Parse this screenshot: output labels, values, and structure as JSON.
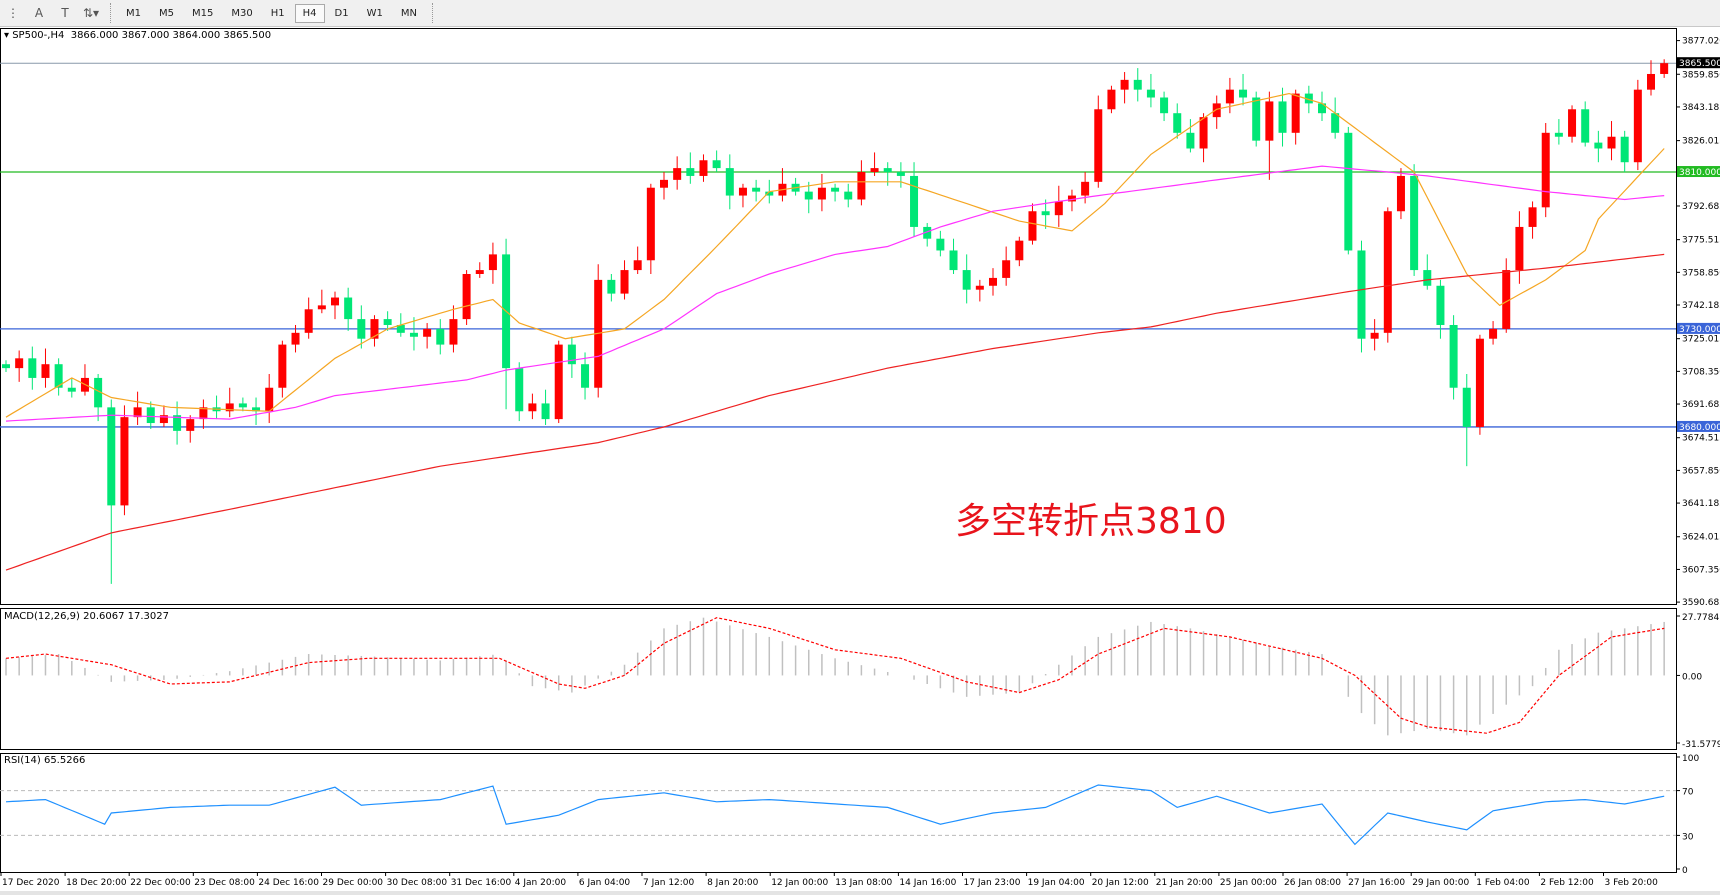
{
  "toolbar": {
    "tools": [
      {
        "icon": "line-studies-icon"
      },
      {
        "icon": "text-A-icon",
        "label": "A"
      },
      {
        "icon": "text-label-icon",
        "label": "T"
      },
      {
        "icon": "arrows-icon"
      }
    ],
    "timeframes": [
      "M1",
      "M5",
      "M15",
      "M30",
      "H1",
      "H4",
      "D1",
      "W1",
      "MN"
    ],
    "active_timeframe": "H4"
  },
  "header": {
    "symbol": "SP500-,H4",
    "ohlc": "3866.000 3867.000 3864.000 3865.500"
  },
  "annotation": "多空转折点3810",
  "levels": [
    {
      "price": 3810,
      "label": "3810.000",
      "color": "#22bb22"
    },
    {
      "price": 3730,
      "label": "3730.000",
      "color": "#3a64d8"
    },
    {
      "price": 3680,
      "label": "3680.000",
      "color": "#3a64d8"
    }
  ],
  "current_price": {
    "label": "3865.500",
    "price": 3865.5
  },
  "colors": {
    "up": "#ff0000",
    "down": "#00e676",
    "ma_fast": "#f5a623",
    "ma_mid": "#ff33ff",
    "ma_slow": "#ee2222",
    "macd_hist": "#c0c0c0",
    "macd_signal": "#ff0000",
    "rsi": "#1e90ff"
  },
  "chart_data": [
    {
      "type": "candlestick",
      "title": "SP500-,H4",
      "ylim": [
        3590.685,
        3877.02
      ],
      "price_ticks": [
        "3877.020",
        "3859.850",
        "3843.185",
        "3826.015",
        "3792.685",
        "3775.515",
        "3758.850",
        "3742.185",
        "3725.015",
        "3708.350",
        "3691.685",
        "3674.515",
        "3657.850",
        "3641.185",
        "3624.015",
        "3607.350",
        "3590.685"
      ],
      "time_labels": [
        "17 Dec 2020",
        "18 Dec 20:00",
        "22 Dec 00:00",
        "23 Dec 08:00",
        "24 Dec 16:00",
        "29 Dec 00:00",
        "30 Dec 08:00",
        "31 Dec 16:00",
        "4 Jan 20:00",
        "6 Jan 04:00",
        "7 Jan 12:00",
        "8 Jan 20:00",
        "12 Jan 00:00",
        "13 Jan 08:00",
        "14 Jan 16:00",
        "17 Jan 23:00",
        "19 Jan 04:00",
        "20 Jan 12:00",
        "21 Jan 20:00",
        "25 Jan 00:00",
        "26 Jan 08:00",
        "27 Jan 16:00",
        "29 Jan 00:00",
        "1 Feb 04:00",
        "2 Feb 12:00",
        "3 Feb 20:00"
      ],
      "close": [
        3710,
        3715,
        3705,
        3712,
        3700,
        3698,
        3705,
        3690,
        3640,
        3685,
        3690,
        3682,
        3686,
        3678,
        3684,
        3690,
        3688,
        3692,
        3690,
        3688,
        3700,
        3722,
        3728,
        3740,
        3742,
        3746,
        3735,
        3725,
        3735,
        3732,
        3728,
        3726,
        3730,
        3722,
        3735,
        3758,
        3760,
        3768,
        3710,
        3688,
        3692,
        3684,
        3722,
        3712,
        3700,
        3755,
        3748,
        3760,
        3765,
        3802,
        3806,
        3812,
        3808,
        3816,
        3812,
        3798,
        3802,
        3800,
        3798,
        3804,
        3800,
        3796,
        3802,
        3800,
        3796,
        3810,
        3812,
        3810,
        3808,
        3782,
        3776,
        3770,
        3760,
        3750,
        3752,
        3756,
        3765,
        3775,
        3790,
        3788,
        3795,
        3798,
        3805,
        3842,
        3852,
        3857,
        3852,
        3848,
        3840,
        3830,
        3822,
        3838,
        3845,
        3852,
        3848,
        3826,
        3846,
        3830,
        3850,
        3845,
        3840,
        3830,
        3770,
        3725,
        3728,
        3790,
        3808,
        3760,
        3752,
        3732,
        3700,
        3680,
        3725,
        3730,
        3760,
        3782,
        3792,
        3830,
        3828,
        3842,
        3825,
        3822,
        3828,
        3815,
        3852,
        3860,
        3865.5
      ],
      "ma_fast": [
        [
          0,
          3685
        ],
        [
          5,
          3705
        ],
        [
          8,
          3695
        ],
        [
          12.5,
          3690
        ],
        [
          20,
          3688
        ],
        [
          25,
          3715
        ],
        [
          29,
          3730
        ],
        [
          34,
          3740
        ],
        [
          37,
          3745
        ],
        [
          39,
          3733
        ],
        [
          42.5,
          3725
        ],
        [
          47,
          3730
        ],
        [
          50,
          3745
        ],
        [
          54,
          3772
        ],
        [
          58,
          3800
        ],
        [
          63,
          3805
        ],
        [
          68,
          3805
        ],
        [
          72.5,
          3795
        ],
        [
          77,
          3785
        ],
        [
          81,
          3780
        ],
        [
          83.5,
          3794
        ],
        [
          87,
          3819
        ],
        [
          92,
          3842
        ],
        [
          97.5,
          3850
        ],
        [
          100,
          3845
        ],
        [
          104,
          3825
        ],
        [
          107,
          3810
        ],
        [
          111,
          3758
        ],
        [
          113.5,
          3742
        ],
        [
          117,
          3755
        ],
        [
          120,
          3770
        ],
        [
          121,
          3786
        ],
        [
          126,
          3822
        ]
      ],
      "ma_mid": [
        [
          0,
          3683
        ],
        [
          8,
          3686
        ],
        [
          17,
          3684
        ],
        [
          22,
          3690
        ],
        [
          25,
          3696
        ],
        [
          30,
          3700
        ],
        [
          35,
          3704
        ],
        [
          38,
          3709
        ],
        [
          45,
          3716
        ],
        [
          50,
          3730
        ],
        [
          54,
          3748
        ],
        [
          58,
          3758
        ],
        [
          63,
          3768
        ],
        [
          67,
          3772
        ],
        [
          71,
          3782
        ],
        [
          75,
          3790
        ],
        [
          79,
          3794
        ],
        [
          83,
          3798
        ],
        [
          92,
          3806
        ],
        [
          100,
          3813
        ],
        [
          105,
          3810
        ],
        [
          108,
          3808
        ],
        [
          117,
          3800
        ],
        [
          123,
          3796
        ],
        [
          126,
          3798
        ]
      ],
      "ma_slow": [
        [
          0,
          3607
        ],
        [
          8,
          3626
        ],
        [
          17,
          3638
        ],
        [
          25,
          3649
        ],
        [
          33,
          3660
        ],
        [
          38,
          3665
        ],
        [
          45,
          3672
        ],
        [
          50,
          3680
        ],
        [
          58,
          3696
        ],
        [
          67,
          3710
        ],
        [
          75,
          3720
        ],
        [
          83,
          3728
        ],
        [
          87,
          3731
        ],
        [
          92,
          3738
        ],
        [
          102,
          3749
        ],
        [
          108,
          3755
        ],
        [
          117,
          3761
        ],
        [
          126,
          3768
        ]
      ]
    },
    {
      "type": "macd",
      "label": "MACD(12,26,9) 20.6067 17.3027",
      "ylim": [
        -31.5779,
        27.7784
      ],
      "ticks": [
        "27.7784",
        "0.00",
        "-31.5779"
      ],
      "histogram": [
        [
          0,
          8
        ],
        [
          4,
          10
        ],
        [
          8,
          -3
        ],
        [
          12.5,
          -2
        ],
        [
          17,
          2
        ],
        [
          23,
          10
        ],
        [
          27.5,
          9
        ],
        [
          33,
          7
        ],
        [
          37.5,
          10
        ],
        [
          40,
          -5
        ],
        [
          43,
          -8
        ],
        [
          47,
          5
        ],
        [
          50,
          22
        ],
        [
          53,
          27
        ],
        [
          58,
          18
        ],
        [
          63,
          8
        ],
        [
          68,
          0
        ],
        [
          73,
          -10
        ],
        [
          77,
          -8
        ],
        [
          80,
          5
        ],
        [
          83,
          18
        ],
        [
          87,
          25
        ],
        [
          90,
          22
        ],
        [
          96,
          14
        ],
        [
          100,
          10
        ],
        [
          102.5,
          -15
        ],
        [
          105,
          -28
        ],
        [
          108,
          -25
        ],
        [
          111,
          -28
        ],
        [
          113,
          -18
        ],
        [
          116,
          -5
        ],
        [
          118,
          12
        ],
        [
          121,
          20
        ],
        [
          126,
          25
        ]
      ],
      "signal": [
        [
          0,
          8
        ],
        [
          3,
          10
        ],
        [
          8,
          5
        ],
        [
          12.5,
          -4
        ],
        [
          17,
          -3
        ],
        [
          23,
          6
        ],
        [
          27.5,
          8
        ],
        [
          33,
          8
        ],
        [
          37.5,
          8
        ],
        [
          42,
          -4
        ],
        [
          44,
          -6
        ],
        [
          47,
          0
        ],
        [
          50,
          15
        ],
        [
          54,
          27
        ],
        [
          58,
          22
        ],
        [
          63,
          12
        ],
        [
          68,
          8
        ],
        [
          73,
          -3
        ],
        [
          77,
          -8
        ],
        [
          80,
          -2
        ],
        [
          83,
          10
        ],
        [
          88,
          22
        ],
        [
          93,
          18
        ],
        [
          100,
          8
        ],
        [
          102.5,
          0
        ],
        [
          106,
          -20
        ],
        [
          108,
          -24
        ],
        [
          112.5,
          -27
        ],
        [
          115,
          -22
        ],
        [
          118,
          0
        ],
        [
          122,
          18
        ],
        [
          126,
          22
        ]
      ]
    },
    {
      "type": "line",
      "label": "RSI(14) 65.5266",
      "ylim": [
        0,
        100
      ],
      "ticks": [
        "100",
        "70",
        "30",
        "0"
      ],
      "levels": [
        70,
        30
      ],
      "values": [
        [
          0,
          60
        ],
        [
          3,
          62
        ],
        [
          7.5,
          40
        ],
        [
          8,
          50
        ],
        [
          12.5,
          55
        ],
        [
          17,
          57
        ],
        [
          20,
          57
        ],
        [
          25,
          73
        ],
        [
          27,
          57
        ],
        [
          33,
          62
        ],
        [
          37,
          74
        ],
        [
          38,
          40
        ],
        [
          42,
          48
        ],
        [
          45,
          62
        ],
        [
          50,
          68
        ],
        [
          54,
          60
        ],
        [
          58,
          62
        ],
        [
          67,
          55
        ],
        [
          71,
          40
        ],
        [
          75,
          50
        ],
        [
          79,
          55
        ],
        [
          83,
          75
        ],
        [
          87,
          70
        ],
        [
          89,
          55
        ],
        [
          92,
          65
        ],
        [
          96,
          50
        ],
        [
          100,
          58
        ],
        [
          102.5,
          22
        ],
        [
          105,
          50
        ],
        [
          108,
          42
        ],
        [
          111,
          35
        ],
        [
          113,
          52
        ],
        [
          117,
          60
        ],
        [
          120,
          62
        ],
        [
          123,
          58
        ],
        [
          126,
          65
        ]
      ]
    }
  ]
}
